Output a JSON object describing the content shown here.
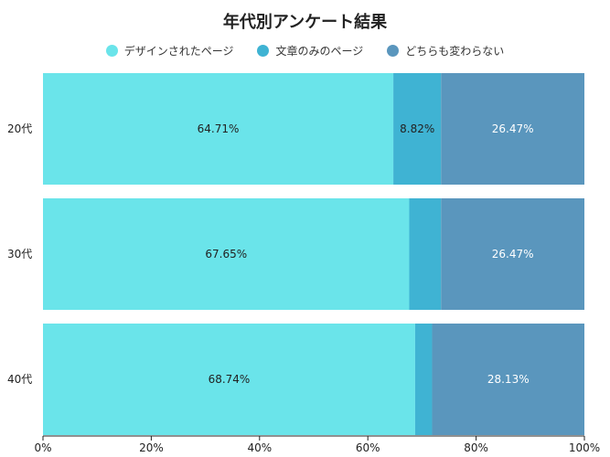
{
  "chart_data": {
    "type": "bar",
    "orientation": "horizontal",
    "stacked": "percent",
    "title": "年代別アンケート結果",
    "categories": [
      "20代",
      "30代",
      "40代"
    ],
    "series": [
      {
        "name": "デザインされたページ",
        "values": [
          64.71,
          67.65,
          68.74
        ],
        "color": "#6ae4ea",
        "label_color": "#222222"
      },
      {
        "name": "文章のみのページ",
        "values": [
          8.82,
          5.88,
          3.13
        ],
        "color": "#3fb3d3",
        "label_color": "#222222"
      },
      {
        "name": "どちらも変わらない",
        "values": [
          26.47,
          26.47,
          28.13
        ],
        "color": "#5a96bd",
        "label_color": "#ffffff"
      }
    ],
    "data_labels": [
      [
        "64.71%",
        "8.82%",
        "26.47%"
      ],
      [
        "67.65%",
        "",
        "26.47%"
      ],
      [
        "68.74%",
        "",
        "28.13%"
      ]
    ],
    "xlim": [
      0,
      100
    ],
    "x_ticks": [
      "0%",
      "20%",
      "40%",
      "60%",
      "80%",
      "100%"
    ],
    "legend_position": "top-center",
    "grid": false
  }
}
